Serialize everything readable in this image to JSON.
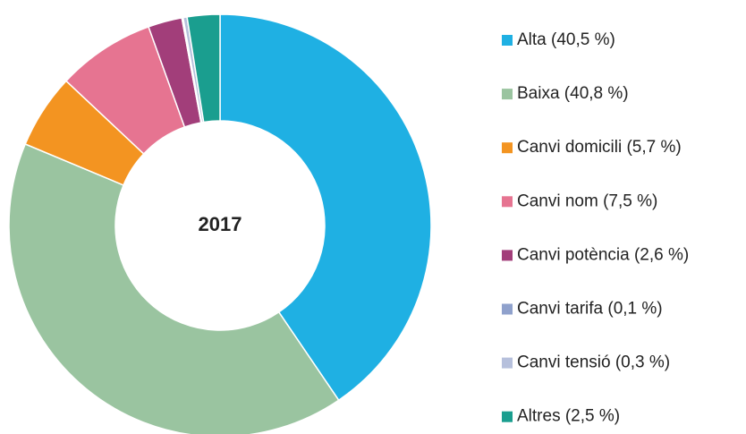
{
  "chart_data": {
    "type": "donut",
    "title": "2017",
    "categories": [
      "Alta (40,5 %)",
      "Baixa (40,8 %)",
      "Canvi domicili (5,7 %)",
      "Canvi nom (7,5 %)",
      "Canvi potència (2,6 %)",
      "Canvi tarifa (0,1 %)",
      "Canvi tensió (0,3 %)",
      "Altres (2,5 %)"
    ],
    "values": [
      40.5,
      40.8,
      5.7,
      7.5,
      2.6,
      0.1,
      0.3,
      2.5
    ],
    "colors": [
      "#1fb0e3",
      "#9ac4a0",
      "#f39421",
      "#e67491",
      "#a23e7a",
      "#8fa1cc",
      "#b6c0dc",
      "#1a9e8f"
    ],
    "legend": "right"
  }
}
